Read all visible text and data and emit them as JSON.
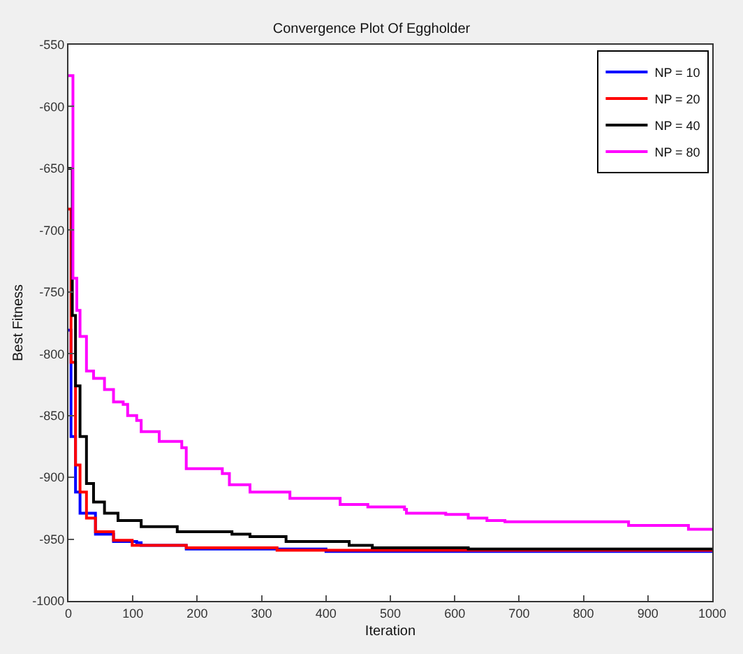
{
  "chart_data": {
    "type": "step",
    "title": "Convergence Plot Of Eggholder",
    "xlabel": "Iteration",
    "ylabel": "Best Fitness",
    "legend": "top right",
    "grid": false,
    "xlim": [
      0,
      1000
    ],
    "xticks": [
      0,
      100,
      200,
      300,
      400,
      500,
      600,
      700,
      800,
      900,
      1000
    ],
    "ylim": [
      -1000,
      -550
    ],
    "yticks": [
      -1000,
      -950,
      -900,
      -850,
      -800,
      -750,
      -700,
      -650,
      -600,
      -550
    ],
    "series": [
      {
        "name": "NP = 10",
        "color": "#0000ff",
        "x": [
          0,
          4,
          11,
          18,
          42,
          70,
          106,
          113,
          183,
          400,
          1000
        ],
        "values": [
          -781,
          -867,
          -912,
          -929,
          -946,
          -952,
          -953,
          -955,
          -958,
          -960,
          -960
        ]
      },
      {
        "name": "NP = 20",
        "color": "#ff0000",
        "x": [
          0,
          4,
          11,
          18,
          28,
          42,
          70,
          99,
          183,
          324,
          1000
        ],
        "values": [
          -683,
          -807,
          -890,
          -912,
          -933,
          -944,
          -951,
          -955,
          -957,
          -959,
          -959
        ]
      },
      {
        "name": "NP = 40",
        "color": "#000000",
        "x": [
          0,
          6,
          11,
          18,
          28,
          39,
          56,
          77,
          113,
          169,
          254,
          282,
          338,
          408,
          436,
          472,
          621,
          1000
        ],
        "values": [
          -650,
          -769,
          -826,
          -867,
          -905,
          -920,
          -929,
          -935,
          -940,
          -944,
          -946,
          -948,
          -952,
          -952,
          -955,
          -957,
          -958,
          -958
        ]
      },
      {
        "name": "NP = 80",
        "color": "#ff00ff",
        "x": [
          0,
          7,
          13,
          18,
          28,
          39,
          56,
          70,
          85,
          92,
          106,
          113,
          141,
          176,
          183,
          239,
          250,
          282,
          344,
          408,
          422,
          465,
          522,
          525,
          586,
          621,
          650,
          678,
          799,
          870,
          956,
          963,
          1000
        ],
        "values": [
          -575,
          -739,
          -765,
          -786,
          -814,
          -820,
          -829,
          -839,
          -841,
          -850,
          -854,
          -863,
          -871,
          -876,
          -893,
          -897,
          -906,
          -912,
          -917,
          -917,
          -922,
          -924,
          -926,
          -929,
          -930,
          -933,
          -935,
          -936,
          -936,
          -939,
          -939,
          -942,
          -942
        ]
      }
    ]
  }
}
